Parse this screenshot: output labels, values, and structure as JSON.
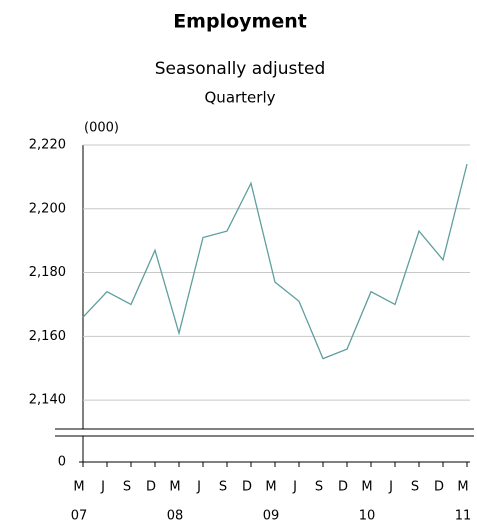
{
  "chart_data": {
    "type": "line",
    "title": "Employment",
    "subtitle": "Seasonally adjusted",
    "frequency": "Quarterly",
    "y_unit": "(000)",
    "categories": [
      "M",
      "J",
      "S",
      "D",
      "M",
      "J",
      "S",
      "D",
      "M",
      "J",
      "S",
      "D",
      "M",
      "J",
      "S",
      "D",
      "M"
    ],
    "year_labels": [
      "07",
      "08",
      "09",
      "10",
      "11"
    ],
    "series": [
      {
        "name": "Employment",
        "color": "#5f9ea0",
        "values": [
          2166,
          2174,
          2170,
          2187,
          2161,
          2191,
          2193,
          2208,
          2177,
          2171,
          2153,
          2156,
          2174,
          2170,
          2193,
          2184,
          2214
        ]
      }
    ],
    "ylim": [
      2130,
      2220
    ],
    "yticks": [
      0,
      {
        "value": 2140,
        "label": "2,140"
      },
      {
        "value": 2160,
        "label": "2,160"
      },
      {
        "value": 2180,
        "label": "2,180"
      },
      {
        "value": 2200,
        "label": "2,200"
      },
      {
        "value": 2220,
        "label": "2,220"
      }
    ],
    "grid": true
  }
}
